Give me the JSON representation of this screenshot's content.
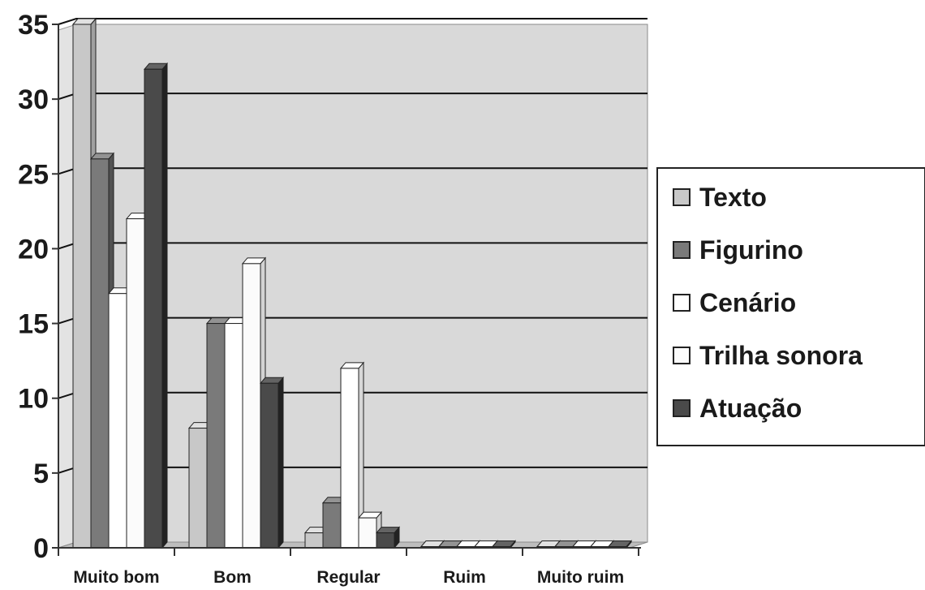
{
  "chart_data": {
    "type": "bar",
    "title": "",
    "xlabel": "",
    "ylabel": "",
    "ylim": [
      0,
      35
    ],
    "yticks": [
      0,
      5,
      10,
      15,
      20,
      25,
      30,
      35
    ],
    "grid": true,
    "legend_position": "right",
    "style": "3d-clustered-column",
    "categories": [
      "Muito bom",
      "Bom",
      "Regular",
      "Ruim",
      "Muito ruim"
    ],
    "series": [
      {
        "name": "Texto",
        "color": "#c8c8c8",
        "values": [
          35,
          8,
          1,
          0,
          0
        ]
      },
      {
        "name": "Figurino",
        "color": "#7a7a7a",
        "values": [
          26,
          15,
          3,
          0,
          0
        ]
      },
      {
        "name": "Cenário",
        "color": "#ffffff",
        "values": [
          17,
          15,
          12,
          0,
          0
        ]
      },
      {
        "name": "Trilha sonora",
        "color": "#fbfbfb",
        "values": [
          22,
          19,
          2,
          0,
          0
        ]
      },
      {
        "name": "Atuação",
        "color": "#4a4a4a",
        "values": [
          32,
          11,
          1,
          0,
          0
        ]
      }
    ],
    "colors": {
      "wall": "#d9d9d9",
      "gridline": "#111111",
      "axis": "#333333"
    }
  }
}
